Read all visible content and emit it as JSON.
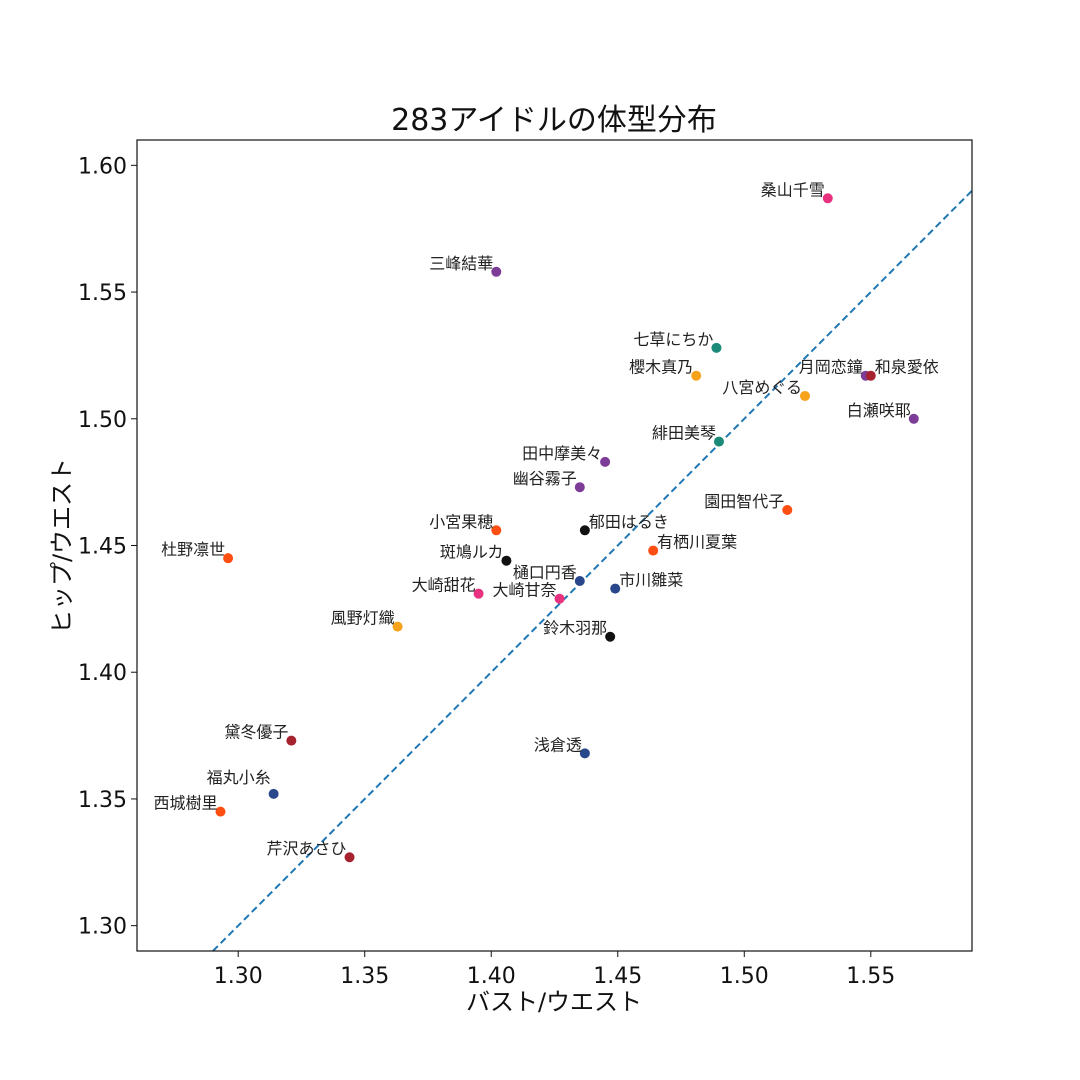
{
  "chart_data": {
    "type": "scatter",
    "title": "283アイドルの体型分布",
    "xlabel": "バスト/ウエスト",
    "ylabel": "ヒップ/ウエスト",
    "xlim": [
      1.26,
      1.59
    ],
    "ylim": [
      1.29,
      1.61
    ],
    "xticks": [
      "1.30",
      "1.35",
      "1.40",
      "1.45",
      "1.50",
      "1.55"
    ],
    "yticks": [
      "1.30",
      "1.35",
      "1.40",
      "1.45",
      "1.50",
      "1.55",
      "1.60"
    ],
    "grid": false,
    "reference_line": {
      "type": "y=x",
      "style": "dashed",
      "color": "#1f77b4"
    },
    "colors": {
      "pink": "#e8327f",
      "teal": "#1b8a78",
      "orange": "#f7a21b",
      "orangered": "#ff4e12",
      "purple": "#7c3c98",
      "darkred": "#a6222f",
      "navy": "#29488c",
      "black": "#111111"
    },
    "points": [
      {
        "name": "桑山千雪",
        "x": 1.533,
        "y": 1.587,
        "color": "pink"
      },
      {
        "name": "三峰結華",
        "x": 1.402,
        "y": 1.558,
        "color": "purple"
      },
      {
        "name": "七草にちか",
        "x": 1.489,
        "y": 1.528,
        "color": "teal"
      },
      {
        "name": "櫻木真乃",
        "x": 1.481,
        "y": 1.517,
        "color": "orange"
      },
      {
        "name": "八宮めぐる",
        "x": 1.524,
        "y": 1.509,
        "color": "orange"
      },
      {
        "name": "月岡恋鐘",
        "x": 1.548,
        "y": 1.517,
        "color": "purple"
      },
      {
        "name": "和泉愛依",
        "x": 1.55,
        "y": 1.517,
        "color": "darkred"
      },
      {
        "name": "白瀬咲耶",
        "x": 1.567,
        "y": 1.5,
        "color": "purple"
      },
      {
        "name": "緋田美琴",
        "x": 1.49,
        "y": 1.491,
        "color": "teal"
      },
      {
        "name": "田中摩美々",
        "x": 1.445,
        "y": 1.483,
        "color": "purple"
      },
      {
        "name": "幽谷霧子",
        "x": 1.435,
        "y": 1.473,
        "color": "purple"
      },
      {
        "name": "園田智代子",
        "x": 1.517,
        "y": 1.464,
        "color": "orangered"
      },
      {
        "name": "小宮果穂",
        "x": 1.402,
        "y": 1.456,
        "color": "orangered"
      },
      {
        "name": "郁田はるき",
        "x": 1.437,
        "y": 1.456,
        "color": "black"
      },
      {
        "name": "杜野凛世",
        "x": 1.296,
        "y": 1.445,
        "color": "orangered"
      },
      {
        "name": "斑鳩ルカ",
        "x": 1.406,
        "y": 1.444,
        "color": "black"
      },
      {
        "name": "有栖川夏葉",
        "x": 1.464,
        "y": 1.448,
        "color": "orangered"
      },
      {
        "name": "樋口円香",
        "x": 1.435,
        "y": 1.436,
        "color": "navy"
      },
      {
        "name": "市川雛菜",
        "x": 1.449,
        "y": 1.433,
        "color": "navy"
      },
      {
        "name": "大崎甜花",
        "x": 1.395,
        "y": 1.431,
        "color": "pink"
      },
      {
        "name": "大崎甘奈",
        "x": 1.427,
        "y": 1.429,
        "color": "pink"
      },
      {
        "name": "風野灯織",
        "x": 1.363,
        "y": 1.418,
        "color": "orange"
      },
      {
        "name": "鈴木羽那",
        "x": 1.447,
        "y": 1.414,
        "color": "black"
      },
      {
        "name": "黛冬優子",
        "x": 1.321,
        "y": 1.373,
        "color": "darkred"
      },
      {
        "name": "浅倉透",
        "x": 1.437,
        "y": 1.368,
        "color": "navy"
      },
      {
        "name": "福丸小糸",
        "x": 1.314,
        "y": 1.352,
        "color": "navy"
      },
      {
        "name": "西城樹里",
        "x": 1.293,
        "y": 1.345,
        "color": "orangered"
      },
      {
        "name": "芹沢あさひ",
        "x": 1.344,
        "y": 1.327,
        "color": "darkred"
      }
    ]
  }
}
